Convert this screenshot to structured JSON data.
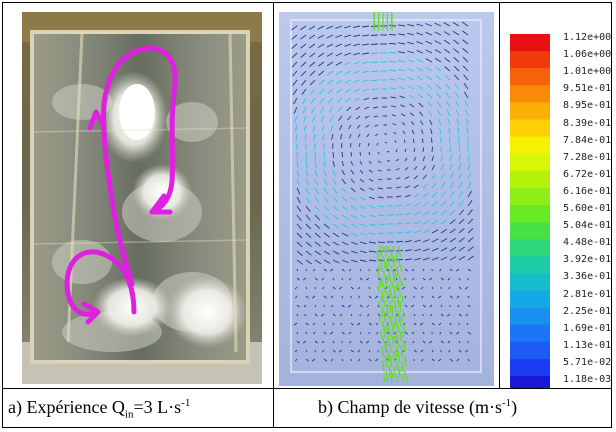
{
  "captions": {
    "a": {
      "prefix": "a) Expérience Q",
      "sub": "in",
      "mid": "=3 L·s",
      "sup": "-1",
      "suffix": ""
    },
    "b": {
      "prefix": "b) Champ de vitesse (m·s",
      "sup": "-1",
      "suffix": ")"
    }
  },
  "legend": {
    "labels": [
      "1.12e+00",
      "1.06e+00",
      "1.01e+00",
      "9.51e-01",
      "8.95e-01",
      "8.39e-01",
      "7.84e-01",
      "7.28e-01",
      "6.72e-01",
      "6.16e-01",
      "5.60e-01",
      "5.04e-01",
      "4.48e-01",
      "3.92e-01",
      "3.36e-01",
      "2.81e-01",
      "2.25e-01",
      "1.69e-01",
      "1.13e-01",
      "5.71e-02",
      "1.18e-03"
    ],
    "colors": [
      "#e81010",
      "#f03a0c",
      "#f6620a",
      "#f98a08",
      "#fbae06",
      "#fcd004",
      "#f6f002",
      "#d8f608",
      "#b4f20c",
      "#8eee18",
      "#68ea26",
      "#48e246",
      "#2ed87a",
      "#1ecca6",
      "#16bccc",
      "#14a8e4",
      "#1890f0",
      "#1a76f4",
      "#1c5af6",
      "#1c3cf4",
      "#1c18d8"
    ]
  },
  "colors": {
    "arrow_fast": "#22c8e8",
    "arrow_slow": "#1a3a8a",
    "jet": "#66dd22",
    "sim_bg": "#aebce4",
    "trajectory": "#e020e0"
  }
}
